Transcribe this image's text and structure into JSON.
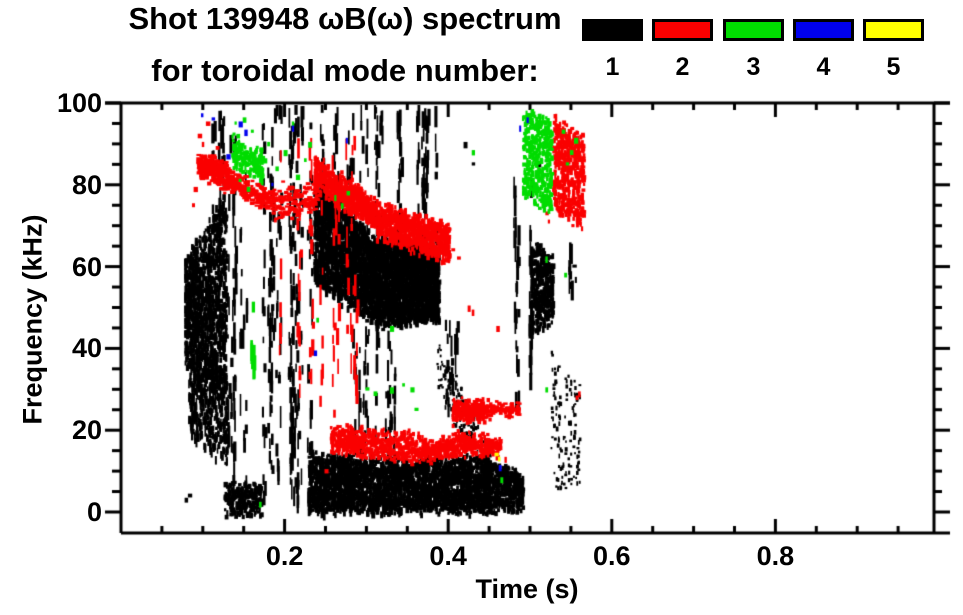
{
  "title": {
    "line1": "Shot 139948 ωB(ω) spectrum",
    "line2": "for toroidal mode number:"
  },
  "chart_data": {
    "type": "scatter",
    "subtype": "toroidal-mode-spectrogram",
    "title": "Shot 139948 ωB(ω) spectrum for toroidal mode number:",
    "xlabel": "Time (s)",
    "ylabel": "Frequency (kHz)",
    "xlim": [
      0,
      0.994
    ],
    "ylim": [
      -5,
      100
    ],
    "x_major_ticks": [
      0.2,
      0.4,
      0.6,
      0.8
    ],
    "x_tick_labels": [
      "0.2",
      "0.4",
      "0.6",
      "0.8"
    ],
    "x_minor_step": 0.05,
    "y_major_ticks": [
      0,
      20,
      40,
      60,
      80,
      100
    ],
    "y_tick_labels": [
      "0",
      "20",
      "40",
      "60",
      "80",
      "100"
    ],
    "y_minor_step": 5,
    "grid": false,
    "legend": {
      "position": "top-right",
      "entries": [
        {
          "mode": "1",
          "color": "#000000"
        },
        {
          "mode": "2",
          "color": "#fa0000"
        },
        {
          "mode": "3",
          "color": "#00dc00"
        },
        {
          "mode": "4",
          "color": "#0000ee"
        },
        {
          "mode": "5",
          "color": "#ffff00"
        }
      ]
    },
    "features": [
      {
        "mode": 1,
        "type": "cloud",
        "t": [
          0.077,
          0.128
        ],
        "fTop": [
          62,
          78
        ],
        "fBot": [
          36,
          30
        ],
        "n": 1100,
        "dw": [
          2,
          3.5
        ],
        "dh": [
          3,
          8
        ]
      },
      {
        "mode": 1,
        "type": "cloud",
        "t": [
          0.082,
          0.13
        ],
        "fTop": [
          38,
          33
        ],
        "fBot": [
          20,
          12
        ],
        "n": 420,
        "dw": [
          1.5,
          3
        ],
        "dh": [
          3,
          9
        ]
      },
      {
        "mode": 1,
        "type": "streaks",
        "t": [
          0.1,
          0.128
        ],
        "f": [
          75,
          99
        ],
        "k": 4,
        "m": 6
      },
      {
        "mode": 1,
        "type": "streaks",
        "t": [
          0.128,
          0.185
        ],
        "f": [
          5,
          96
        ],
        "k": 14,
        "m": 9
      },
      {
        "mode": 1,
        "type": "cloud",
        "t": [
          0.125,
          0.17
        ],
        "fTop": [
          7,
          7
        ],
        "fBot": [
          0,
          0
        ],
        "n": 230,
        "dw": [
          2,
          4
        ],
        "dh": [
          3,
          6
        ]
      },
      {
        "mode": 1,
        "type": "streaks",
        "t": [
          0.185,
          0.235
        ],
        "f": [
          4,
          100
        ],
        "k": 16,
        "m": 11
      },
      {
        "mode": 1,
        "type": "cloud",
        "t": [
          0.235,
          0.31
        ],
        "fTop": [
          81,
          67
        ],
        "fBot": [
          57,
          47
        ],
        "n": 1700,
        "dw": [
          2,
          4
        ],
        "dh": [
          3,
          7
        ]
      },
      {
        "mode": 1,
        "type": "cloud",
        "t": [
          0.31,
          0.387
        ],
        "fTop": [
          67,
          65
        ],
        "fBot": [
          46,
          48
        ],
        "n": 2000,
        "dw": [
          2,
          4
        ],
        "dh": [
          3,
          7
        ]
      },
      {
        "mode": 1,
        "type": "streaks",
        "t": [
          0.24,
          0.385
        ],
        "f": [
          66,
          100
        ],
        "k": 22,
        "m": 8
      },
      {
        "mode": 1,
        "type": "streaks",
        "t": [
          0.27,
          0.335
        ],
        "f": [
          18,
          46
        ],
        "k": 8,
        "m": 7
      },
      {
        "mode": 1,
        "type": "cloud",
        "t": [
          0.228,
          0.45
        ],
        "fTop": [
          14,
          13
        ],
        "fBot": [
          1,
          1
        ],
        "n": 2600,
        "dw": [
          2,
          4
        ],
        "dh": [
          3,
          7
        ]
      },
      {
        "mode": 1,
        "type": "cloud",
        "t": [
          0.45,
          0.49
        ],
        "fTop": [
          13,
          9
        ],
        "fBot": [
          1,
          2
        ],
        "n": 420,
        "dw": [
          2,
          4
        ],
        "dh": [
          3,
          6
        ]
      },
      {
        "mode": 1,
        "type": "cloud",
        "t": [
          0.385,
          0.45
        ],
        "fTop": [
          42,
          16
        ],
        "fBot": [
          30,
          8
        ],
        "n": 180,
        "dw": [
          1.5,
          3
        ],
        "dh": [
          2,
          5
        ]
      },
      {
        "mode": 1,
        "type": "streaks",
        "t": [
          0.39,
          0.41
        ],
        "f": [
          25,
          48
        ],
        "k": 3,
        "m": 6
      },
      {
        "mode": 1,
        "type": "streaks",
        "t": [
          0.48,
          0.5
        ],
        "f": [
          28,
          82
        ],
        "k": 4,
        "m": 13
      },
      {
        "mode": 1,
        "type": "cloud",
        "t": [
          0.5,
          0.527
        ],
        "fTop": [
          66,
          62
        ],
        "fBot": [
          44,
          48
        ],
        "n": 340,
        "dw": [
          2,
          4
        ],
        "dh": [
          3,
          7
        ]
      },
      {
        "mode": 1,
        "type": "cloud",
        "t": [
          0.525,
          0.56
        ],
        "fTop": [
          40,
          30
        ],
        "fBot": [
          5,
          8
        ],
        "n": 130,
        "dw": [
          1.5,
          3
        ],
        "dh": [
          2,
          5
        ]
      },
      {
        "mode": 1,
        "type": "streaks",
        "t": [
          0.53,
          0.553
        ],
        "f": [
          55,
          66
        ],
        "k": 2,
        "m": 5
      },
      {
        "mode": 1,
        "type": "specks",
        "pts": [
          [
            0.079,
            3
          ],
          [
            0.083,
            4
          ],
          [
            0.17,
            2
          ],
          [
            0.51,
            85
          ],
          [
            0.553,
            60
          ],
          [
            0.556,
            57
          ],
          [
            0.42,
            90
          ],
          [
            0.43,
            85
          ]
        ]
      },
      {
        "mode": 2,
        "type": "cloud",
        "t": [
          0.092,
          0.13
        ],
        "fTop": [
          88,
          84
        ],
        "fBot": [
          83,
          79
        ],
        "n": 240,
        "dw": [
          3,
          6
        ],
        "dh": [
          2,
          4
        ]
      },
      {
        "mode": 2,
        "type": "cloud",
        "t": [
          0.13,
          0.185
        ],
        "fTop": [
          83,
          78
        ],
        "fBot": [
          79,
          74
        ],
        "n": 170,
        "dw": [
          3,
          6
        ],
        "dh": [
          2,
          4
        ]
      },
      {
        "mode": 2,
        "type": "cloud",
        "t": [
          0.185,
          0.24
        ],
        "fTop": [
          80,
          80
        ],
        "fBot": [
          72,
          74
        ],
        "n": 130,
        "dw": [
          3,
          6
        ],
        "dh": [
          2,
          4
        ]
      },
      {
        "mode": 2,
        "type": "specks",
        "pts": [
          [
            0.095,
            92
          ],
          [
            0.1,
            90
          ],
          [
            0.105,
            95
          ],
          [
            0.117,
            89
          ],
          [
            0.09,
            79
          ],
          [
            0.088,
            75
          ]
        ]
      },
      {
        "mode": 2,
        "type": "streaks",
        "t": [
          0.185,
          0.29
        ],
        "f": [
          24,
          92
        ],
        "k": 13,
        "m": 7
      },
      {
        "mode": 2,
        "type": "cloud",
        "t": [
          0.235,
          0.31
        ],
        "fTop": [
          87,
          76
        ],
        "fBot": [
          80,
          70
        ],
        "n": 650,
        "dw": [
          2,
          4
        ],
        "dh": [
          3,
          6
        ]
      },
      {
        "mode": 2,
        "type": "cloud",
        "t": [
          0.31,
          0.4
        ],
        "fTop": [
          76,
          70
        ],
        "fBot": [
          68,
          62
        ],
        "n": 750,
        "dw": [
          2,
          4
        ],
        "dh": [
          3,
          6
        ]
      },
      {
        "mode": 2,
        "type": "cloud",
        "t": [
          0.255,
          0.37
        ],
        "fTop": [
          21,
          19
        ],
        "fBot": [
          15,
          13
        ],
        "n": 560,
        "dw": [
          2,
          4
        ],
        "dh": [
          3,
          5
        ]
      },
      {
        "mode": 2,
        "type": "cloud",
        "t": [
          0.37,
          0.405
        ],
        "fTop": [
          17,
          19
        ],
        "fBot": [
          13,
          15
        ],
        "n": 190,
        "dw": [
          2,
          4
        ],
        "dh": [
          3,
          5
        ]
      },
      {
        "mode": 2,
        "type": "cloud",
        "t": [
          0.405,
          0.462
        ],
        "fTop": [
          19,
          18
        ],
        "fBot": [
          15,
          15
        ],
        "n": 260,
        "dw": [
          2,
          4
        ],
        "dh": [
          3,
          5
        ]
      },
      {
        "mode": 2,
        "type": "cloud",
        "t": [
          0.404,
          0.447
        ],
        "fTop": [
          27,
          27
        ],
        "fBot": [
          23,
          24
        ],
        "n": 300,
        "dw": [
          2,
          4
        ],
        "dh": [
          3,
          5
        ]
      },
      {
        "mode": 2,
        "type": "cloud",
        "t": [
          0.447,
          0.485
        ],
        "fTop": [
          27,
          26
        ],
        "fBot": [
          24,
          24
        ],
        "n": 80,
        "dw": [
          3,
          5
        ],
        "dh": [
          2,
          4
        ]
      },
      {
        "mode": 2,
        "type": "cloud",
        "t": [
          0.527,
          0.565
        ],
        "fTop": [
          97,
          92
        ],
        "fBot": [
          74,
          70
        ],
        "n": 520,
        "dw": [
          2,
          4
        ],
        "dh": [
          3,
          6
        ]
      },
      {
        "mode": 2,
        "type": "specks",
        "pts": [
          [
            0.52,
            73
          ],
          [
            0.523,
            71
          ],
          [
            0.557,
            28
          ],
          [
            0.56,
            29
          ],
          [
            0.25,
            10
          ],
          [
            0.47,
            13
          ],
          [
            0.405,
            64
          ],
          [
            0.412,
            62
          ],
          [
            0.425,
            50
          ],
          [
            0.43,
            49
          ],
          [
            0.46,
            45
          ]
        ]
      },
      {
        "mode": 3,
        "type": "cloud",
        "t": [
          0.135,
          0.172
        ],
        "fTop": [
          92,
          88
        ],
        "fBot": [
          85,
          82
        ],
        "n": 200,
        "dw": [
          2,
          4
        ],
        "dh": [
          3,
          5
        ]
      },
      {
        "mode": 3,
        "type": "specks",
        "pts": [
          [
            0.14,
            95
          ],
          [
            0.15,
            96
          ],
          [
            0.16,
            93
          ],
          [
            0.175,
            86
          ],
          [
            0.18,
            90
          ],
          [
            0.19,
            84
          ],
          [
            0.2,
            88
          ],
          [
            0.21,
            95
          ],
          [
            0.215,
            82
          ],
          [
            0.225,
            86
          ],
          [
            0.23,
            90
          ],
          [
            0.155,
            79
          ],
          [
            0.145,
            81
          ]
        ]
      },
      {
        "mode": 3,
        "type": "streaks",
        "t": [
          0.158,
          0.166
        ],
        "f": [
          28,
          53
        ],
        "k": 1,
        "m": 8
      },
      {
        "mode": 3,
        "type": "specks",
        "pts": [
          [
            0.262,
            77
          ],
          [
            0.27,
            75
          ],
          [
            0.277,
            78
          ],
          [
            0.3,
            30
          ],
          [
            0.31,
            29
          ],
          [
            0.33,
            30
          ],
          [
            0.345,
            31
          ],
          [
            0.355,
            30
          ],
          [
            0.33,
            45
          ],
          [
            0.36,
            25
          ]
        ]
      },
      {
        "mode": 3,
        "type": "cloud",
        "t": [
          0.49,
          0.525
        ],
        "fTop": [
          99,
          96
        ],
        "fBot": [
          78,
          74
        ],
        "n": 400,
        "dw": [
          2,
          4
        ],
        "dh": [
          3,
          6
        ]
      },
      {
        "mode": 3,
        "type": "specks",
        "pts": [
          [
            0.54,
            93
          ],
          [
            0.55,
            88
          ],
          [
            0.545,
            85
          ],
          [
            0.555,
            91
          ],
          [
            0.52,
            62
          ],
          [
            0.543,
            58
          ],
          [
            0.43,
            88
          ],
          [
            0.465,
            8
          ],
          [
            0.17,
            2
          ],
          [
            0.24,
            47
          ],
          [
            0.52,
            30
          ]
        ]
      },
      {
        "mode": 4,
        "type": "specks",
        "pts": [
          [
            0.099,
            97
          ],
          [
            0.112,
            96
          ],
          [
            0.145,
            95
          ],
          [
            0.152,
            93
          ],
          [
            0.185,
            80
          ],
          [
            0.21,
            94
          ],
          [
            0.237,
            39
          ],
          [
            0.276,
            91
          ],
          [
            0.463,
            11
          ],
          [
            0.488,
            94
          ],
          [
            0.497,
            96
          ],
          [
            0.13,
            87
          ]
        ]
      },
      {
        "mode": 5,
        "type": "specks",
        "pts": [
          [
            0.458,
            14
          ],
          [
            0.462,
            13
          ]
        ]
      }
    ]
  }
}
